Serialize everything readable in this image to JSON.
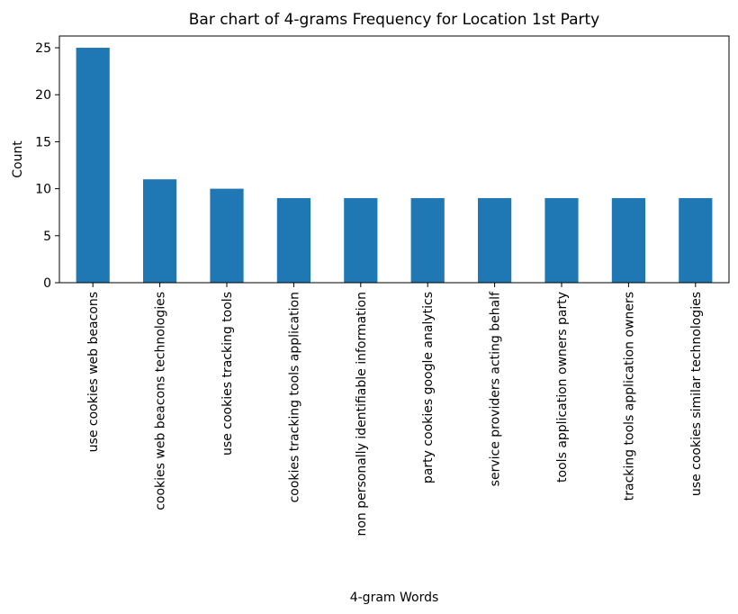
{
  "chart_data": {
    "type": "bar",
    "title": "Bar chart of 4-grams Frequency for Location 1st Party",
    "xlabel": "4-gram Words",
    "ylabel": "Count",
    "categories": [
      "use cookies web beacons",
      "cookies web beacons technologies",
      "use cookies tracking tools",
      "cookies tracking tools application",
      "non personally identifiable information",
      "party cookies google analytics",
      "service providers acting behalf",
      "tools application owners party",
      "tracking tools application owners",
      "use cookies similar technologies"
    ],
    "values": [
      25,
      11,
      10,
      9,
      9,
      9,
      9,
      9,
      9,
      9
    ],
    "ylim": [
      0,
      26.25
    ],
    "yticks": [
      0,
      5,
      10,
      15,
      20,
      25
    ],
    "bar_color": "#1f77b4",
    "grid": false,
    "legend": false
  }
}
